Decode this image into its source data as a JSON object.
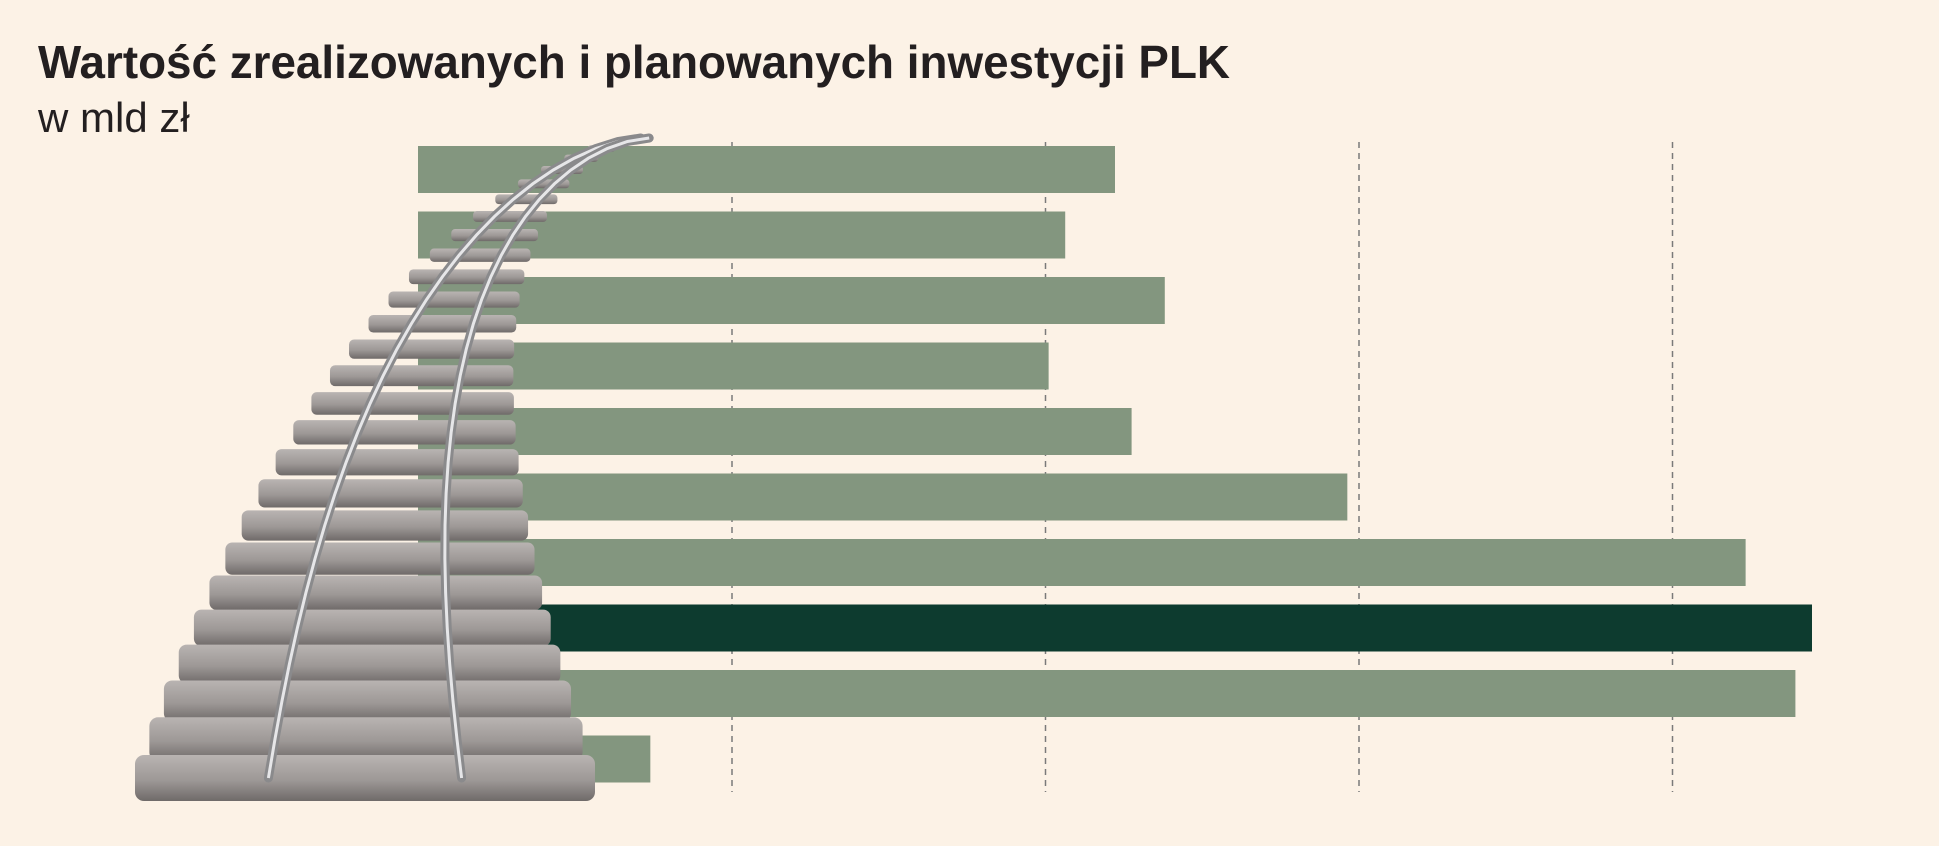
{
  "title": "Wartość zrealizowanych i planowanych inwestycji PLK",
  "subtitle": "w mld zł",
  "colors": {
    "background": "#fcf2e6",
    "bar": "#83967f",
    "bar_highlight": "#0d3b2f",
    "grid": "#7a7a7a",
    "title": "#231f20"
  },
  "chart_data": {
    "type": "bar",
    "orientation": "horizontal",
    "title": "Wartość zrealizowanych i planowanych inwestycji PLK",
    "subtitle": "w mld zł",
    "xlim": [
      0,
      15
    ],
    "grid": true,
    "tick_labels_visible": false,
    "highlight_index": 7,
    "values": [
      4.2,
      3.9,
      4.5,
      3.8,
      4.3,
      5.6,
      8.0,
      8.4,
      8.3,
      1.4
    ]
  }
}
